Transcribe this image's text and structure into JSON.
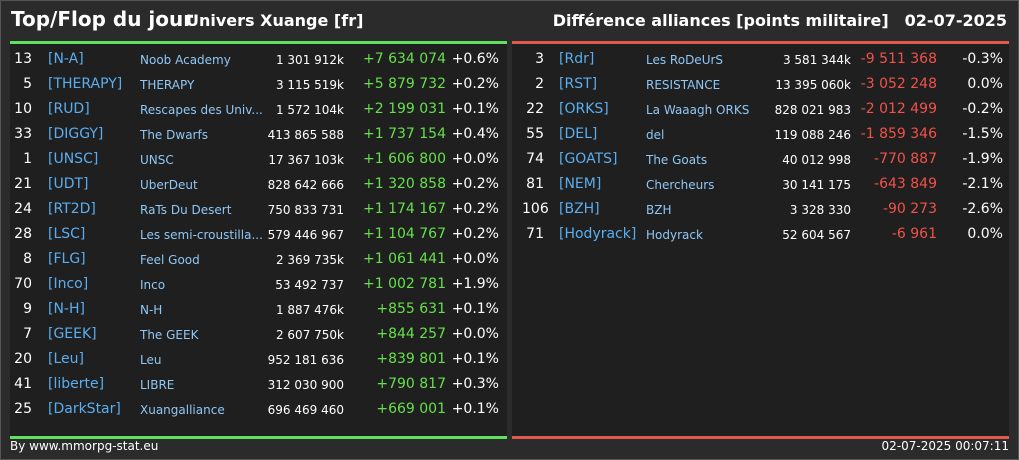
{
  "header": {
    "title": "Top/Flop du jour",
    "universe": "Univers Xuange [fr]",
    "category": "Différence alliances [points militaire]",
    "date": "02-07-2025"
  },
  "colors": {
    "top_accent": "#5fe05f",
    "flop_accent": "#e0584f",
    "tag": "#5aaef0",
    "positive": "#66e04a",
    "negative": "#f0524a"
  },
  "top": [
    {
      "rank": "13",
      "tag": "[N-A]",
      "name": "Noob Academy",
      "points": "1 301 912k",
      "diff": "+7 634 074",
      "pct": "+0.6%"
    },
    {
      "rank": "5",
      "tag": "[THERAPY]",
      "name": "THERAPY",
      "points": "3 115 519k",
      "diff": "+5 879 732",
      "pct": "+0.2%"
    },
    {
      "rank": "10",
      "tag": "[RUD]",
      "name": "Rescapes des Univ...",
      "points": "1 572 104k",
      "diff": "+2 199 031",
      "pct": "+0.1%"
    },
    {
      "rank": "33",
      "tag": "[DIGGY]",
      "name": "The Dwarfs",
      "points": "413 865 588",
      "diff": "+1 737 154",
      "pct": "+0.4%"
    },
    {
      "rank": "1",
      "tag": "[UNSC]",
      "name": "UNSC",
      "points": "17 367 103k",
      "diff": "+1 606 800",
      "pct": "+0.0%"
    },
    {
      "rank": "21",
      "tag": "[UDT]",
      "name": "UberDeut",
      "points": "828 642 666",
      "diff": "+1 320 858",
      "pct": "+0.2%"
    },
    {
      "rank": "24",
      "tag": "[RT2D]",
      "name": "RaTs Du Desert",
      "points": "750 833 731",
      "diff": "+1 174 167",
      "pct": "+0.2%"
    },
    {
      "rank": "28",
      "tag": "[LSC]",
      "name": "Les semi-croustilla...",
      "points": "579 446 967",
      "diff": "+1 104 767",
      "pct": "+0.2%"
    },
    {
      "rank": "8",
      "tag": "[FLG]",
      "name": "Feel Good",
      "points": "2 369 735k",
      "diff": "+1 061 441",
      "pct": "+0.0%"
    },
    {
      "rank": "70",
      "tag": "[Inco]",
      "name": "Inco",
      "points": "53 492 737",
      "diff": "+1 002 781",
      "pct": "+1.9%"
    },
    {
      "rank": "9",
      "tag": "[N-H]",
      "name": "N-H",
      "points": "1 887 476k",
      "diff": "+855 631",
      "pct": "+0.1%"
    },
    {
      "rank": "7",
      "tag": "[GEEK]",
      "name": "The GEEK",
      "points": "2 607 750k",
      "diff": "+844 257",
      "pct": "+0.0%"
    },
    {
      "rank": "20",
      "tag": "[Leu]",
      "name": "Leu",
      "points": "952 181 636",
      "diff": "+839 801",
      "pct": "+0.1%"
    },
    {
      "rank": "41",
      "tag": "[liberte]",
      "name": "LIBRE",
      "points": "312 030 900",
      "diff": "+790 817",
      "pct": "+0.3%"
    },
    {
      "rank": "25",
      "tag": "[DarkStar]",
      "name": "Xuangalliance",
      "points": "696 469 460",
      "diff": "+669 001",
      "pct": "+0.1%"
    }
  ],
  "flop": [
    {
      "rank": "3",
      "tag": "[Rdr]",
      "name": "Les RoDeUrS",
      "points": "3 581 344k",
      "diff": "-9 511 368",
      "pct": "-0.3%"
    },
    {
      "rank": "2",
      "tag": "[RST]",
      "name": "RESISTANCE",
      "points": "13 395 060k",
      "diff": "-3 052 248",
      "pct": "0.0%"
    },
    {
      "rank": "22",
      "tag": "[ORKS]",
      "name": "La Waaagh ORKS",
      "points": "828 021 983",
      "diff": "-2 012 499",
      "pct": "-0.2%"
    },
    {
      "rank": "55",
      "tag": "[DEL]",
      "name": "del",
      "points": "119 088 246",
      "diff": "-1 859 346",
      "pct": "-1.5%"
    },
    {
      "rank": "74",
      "tag": "[GOATS]",
      "name": "The Goats",
      "points": "40 012 998",
      "diff": "-770 887",
      "pct": "-1.9%"
    },
    {
      "rank": "81",
      "tag": "[NEM]",
      "name": "Chercheurs",
      "points": "30 141 175",
      "diff": "-643 849",
      "pct": "-2.1%"
    },
    {
      "rank": "106",
      "tag": "[BZH]",
      "name": "BZH",
      "points": "3 328 330",
      "diff": "-90 273",
      "pct": "-2.6%"
    },
    {
      "rank": "71",
      "tag": "[Hodyrack]",
      "name": "Hodyrack",
      "points": "52 604 567",
      "diff": "-6 961",
      "pct": "0.0%"
    }
  ],
  "footer": {
    "source": "By www.mmorpg-stat.eu",
    "timestamp": "02-07-2025 00:07:11"
  }
}
